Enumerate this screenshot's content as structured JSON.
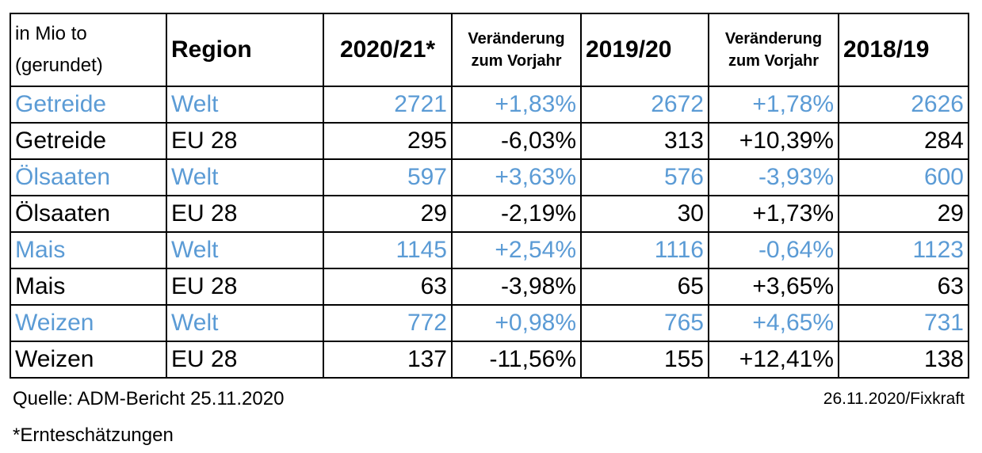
{
  "colors": {
    "welt_row": "#5b9bd5",
    "eu_row": "#000000",
    "border": "#000000"
  },
  "chart_data": {
    "type": "table",
    "columns": {
      "unit": [
        "in Mio to",
        "(gerundet)"
      ],
      "region": "Region",
      "y2021": "2020/21*",
      "change_2021": [
        "Veränderung",
        "zum Vorjahr"
      ],
      "y2020": "2019/20",
      "change_2020": [
        "Veränderung",
        "zum Vorjahr"
      ],
      "y2019": "2018/19"
    },
    "rows": [
      {
        "crop": "Getreide",
        "region": "Welt",
        "y2021": "2721",
        "change_2021": "+1,83%",
        "y2020": "2672",
        "change_2020": "+1,78%",
        "y2019": "2626"
      },
      {
        "crop": "Getreide",
        "region": "EU 28",
        "y2021": "295",
        "change_2021": "-6,03%",
        "y2020": "313",
        "change_2020": "+10,39%",
        "y2019": "284"
      },
      {
        "crop": "Ölsaaten",
        "region": "Welt",
        "y2021": "597",
        "change_2021": "+3,63%",
        "y2020": "576",
        "change_2020": "-3,93%",
        "y2019": "600"
      },
      {
        "crop": "Ölsaaten",
        "region": "EU 28",
        "y2021": "29",
        "change_2021": "-2,19%",
        "y2020": "30",
        "change_2020": "+1,73%",
        "y2019": "29"
      },
      {
        "crop": "Mais",
        "region": "Welt",
        "y2021": "1145",
        "change_2021": "+2,54%",
        "y2020": "1116",
        "change_2020": "-0,64%",
        "y2019": "1123"
      },
      {
        "crop": "Mais",
        "region": "EU 28",
        "y2021": "63",
        "change_2021": "-3,98%",
        "y2020": "65",
        "change_2020": "+3,65%",
        "y2019": "63"
      },
      {
        "crop": "Weizen",
        "region": "Welt",
        "y2021": "772",
        "change_2021": "+0,98%",
        "y2020": "765",
        "change_2020": "+4,65%",
        "y2019": "731"
      },
      {
        "crop": "Weizen",
        "region": "EU 28",
        "y2021": "137",
        "change_2021": "-11,56%",
        "y2020": "155",
        "change_2020": "+12,41%",
        "y2019": "138"
      }
    ]
  },
  "notes": {
    "source": "Quelle: ADM-Bericht 25.11.2020",
    "date": "26.11.2020/Fixkraft",
    "footnote": "*Ernteschätzungen"
  }
}
